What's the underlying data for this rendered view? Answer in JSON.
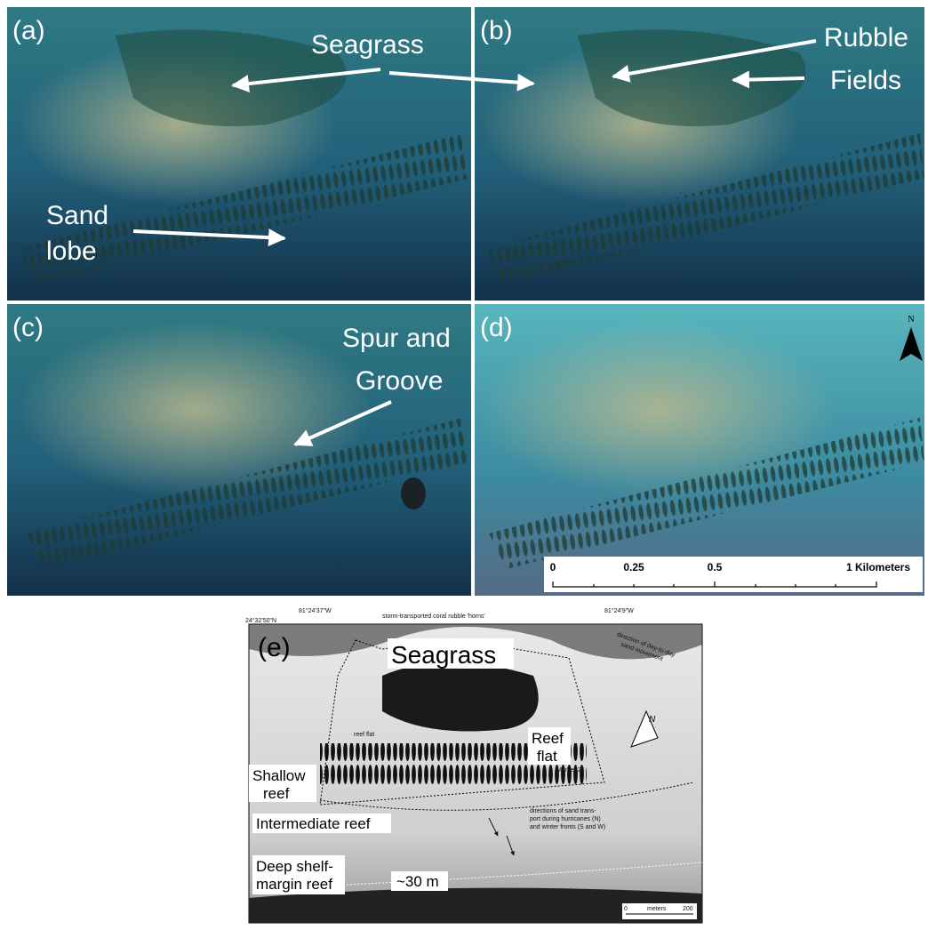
{
  "panel_a": {
    "label": "(a)",
    "seagrass": "Seagrass",
    "sand_lobe": [
      "Sand",
      "lobe"
    ]
  },
  "panel_b": {
    "label": "(b)",
    "rubble_fields": [
      "Rubble",
      "Fields"
    ]
  },
  "panel_c": {
    "label": "(c)",
    "spur_groove": [
      "Spur and",
      "Groove"
    ]
  },
  "panel_d": {
    "label": "(d)",
    "north": "N",
    "scale": [
      "0",
      "0.25",
      "0.5",
      "1 Kilometers"
    ]
  },
  "panel_e": {
    "label": "(e)",
    "lat_top": "24°32'50\"N",
    "lon_left": "81°24'37\"W",
    "lon_right": "81°24'9\"W",
    "rubble_note": "storm-transported coral rubble 'horns'",
    "sand_move": [
      "direction of day-to-day",
      "sand movement"
    ],
    "seagrass": "Seagrass",
    "reef_flat_big": [
      "Reef",
      "flat"
    ],
    "reef_flat_small": "reef flat",
    "marker": "Marker 24",
    "shallow_reef": [
      "Shallow",
      "reef"
    ],
    "intermediate_reef": "Intermediate reef",
    "transport_note": [
      "directions of sand trans-",
      "port during hurricanes (N)",
      "and winter fronts (S and W)"
    ],
    "deep_reef": [
      "Deep shelf-",
      "margin reef"
    ],
    "depth": "~30 m",
    "north": "N",
    "scale": [
      "0",
      "meters",
      "200"
    ]
  }
}
